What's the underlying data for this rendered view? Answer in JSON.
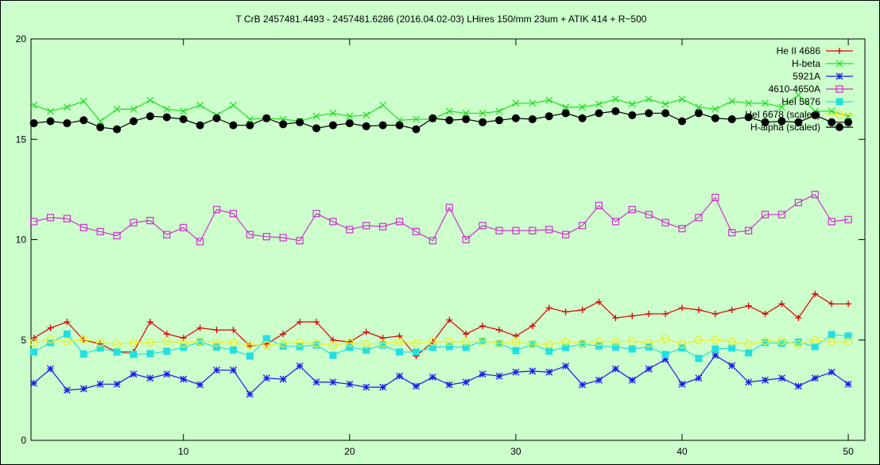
{
  "chart_data": {
    "type": "line",
    "title": "T CrB 2457481.4493 - 2457481.6286 (2016.04.02-03) LHires 150/mm 23um + ATIK 414 + R~500",
    "xlabel": "",
    "ylabel": "",
    "xlim": [
      0.83,
      51
    ],
    "ylim": [
      0,
      20
    ],
    "xticks": [
      10,
      20,
      30,
      40,
      50
    ],
    "yticks": [
      0,
      5,
      10,
      15,
      20
    ],
    "grid": false,
    "legend": "top-right",
    "background": "#ccffcc",
    "x": [
      1,
      2,
      3,
      4,
      5,
      6,
      7,
      8,
      9,
      10,
      11,
      12,
      13,
      14,
      15,
      16,
      17,
      18,
      19,
      20,
      21,
      22,
      23,
      24,
      25,
      26,
      27,
      28,
      29,
      30,
      31,
      32,
      33,
      34,
      35,
      36,
      37,
      38,
      39,
      40,
      41,
      42,
      43,
      44,
      45,
      46,
      47,
      48,
      49,
      50
    ],
    "series": [
      {
        "name": "He II 4686",
        "color": "#dd0000",
        "marker": "plus",
        "values": [
          5.1,
          5.6,
          5.9,
          5.0,
          4.8,
          4.4,
          4.4,
          5.9,
          5.3,
          5.1,
          5.6,
          5.5,
          5.5,
          4.7,
          4.8,
          5.3,
          5.9,
          5.9,
          5.0,
          4.9,
          5.4,
          5.1,
          5.2,
          4.2,
          4.9,
          6.0,
          5.3,
          5.7,
          5.5,
          5.2,
          5.7,
          6.6,
          6.4,
          6.5,
          6.9,
          6.1,
          6.2,
          6.3,
          6.3,
          6.6,
          6.5,
          6.3,
          6.5,
          6.7,
          6.3,
          6.8,
          6.1,
          7.3,
          6.8,
          6.8
        ]
      },
      {
        "name": "H-beta",
        "color": "#22dd22",
        "marker": "cross",
        "values": [
          16.7,
          16.4,
          16.6,
          16.9,
          15.9,
          16.5,
          16.5,
          16.95,
          16.5,
          16.4,
          16.7,
          16.2,
          16.7,
          16.0,
          16.05,
          16.0,
          15.9,
          16.15,
          16.3,
          16.15,
          16.2,
          16.7,
          15.95,
          16.0,
          16.0,
          16.4,
          16.3,
          16.3,
          16.4,
          16.8,
          16.8,
          16.95,
          16.6,
          16.6,
          16.75,
          17.0,
          16.75,
          17.0,
          16.75,
          17.0,
          16.6,
          16.5,
          16.9,
          16.8,
          16.8,
          16.6,
          17.2,
          16.4,
          16.4,
          16.15
        ]
      },
      {
        "name": "5921A",
        "color": "#1a1aee",
        "marker": "star",
        "values": [
          2.85,
          3.56,
          2.5,
          2.57,
          2.8,
          2.8,
          3.3,
          3.1,
          3.3,
          3.05,
          2.77,
          3.5,
          3.5,
          2.3,
          3.1,
          3.05,
          3.7,
          2.9,
          2.9,
          2.8,
          2.65,
          2.65,
          3.2,
          2.7,
          3.15,
          2.77,
          2.9,
          3.3,
          3.2,
          3.4,
          3.45,
          3.4,
          3.7,
          2.77,
          3.0,
          3.56,
          3.0,
          3.56,
          4.04,
          2.8,
          3.1,
          4.24,
          3.72,
          2.9,
          3.0,
          3.1,
          2.7,
          3.1,
          3.4,
          2.8
        ]
      },
      {
        "name": "4610-4650A",
        "color": "#cc33cc",
        "marker": "open-square",
        "values": [
          10.9,
          11.1,
          11.05,
          10.6,
          10.4,
          10.2,
          10.85,
          10.95,
          10.25,
          10.6,
          9.9,
          11.5,
          11.3,
          10.25,
          10.15,
          10.1,
          9.95,
          11.3,
          10.9,
          10.5,
          10.7,
          10.65,
          10.9,
          10.4,
          9.95,
          11.6,
          10.0,
          10.7,
          10.45,
          10.45,
          10.45,
          10.5,
          10.25,
          10.7,
          11.7,
          10.9,
          11.5,
          11.25,
          10.85,
          10.55,
          11.1,
          12.1,
          10.35,
          10.45,
          11.25,
          11.25,
          11.85,
          12.25,
          10.9,
          11.0
        ]
      },
      {
        "name": "HeI 5876",
        "color": "#22e0e0",
        "marker": "filled-square",
        "values": [
          4.4,
          4.87,
          5.3,
          4.3,
          4.6,
          4.4,
          4.28,
          4.32,
          4.44,
          4.63,
          4.9,
          4.65,
          4.5,
          4.2,
          5.07,
          4.7,
          4.67,
          4.75,
          4.24,
          4.63,
          4.5,
          4.75,
          4.4,
          4.4,
          4.63,
          4.67,
          4.63,
          4.95,
          4.83,
          4.47,
          4.8,
          4.44,
          4.63,
          4.8,
          4.7,
          4.65,
          4.55,
          4.65,
          4.28,
          4.6,
          4.08,
          4.55,
          4.6,
          4.36,
          4.87,
          4.83,
          4.9,
          4.67,
          5.27,
          5.2
        ]
      },
      {
        "name": "HeI 6678 (scaled)",
        "color": "#eeee22",
        "marker": "open-circle",
        "values": [
          4.87,
          5.03,
          4.91,
          5.03,
          4.87,
          4.79,
          4.87,
          4.87,
          4.95,
          4.83,
          4.95,
          4.87,
          4.87,
          4.75,
          4.75,
          4.83,
          4.87,
          4.83,
          4.71,
          4.87,
          4.79,
          4.83,
          4.91,
          4.83,
          4.91,
          4.91,
          4.91,
          4.95,
          4.83,
          4.91,
          4.79,
          4.79,
          4.91,
          4.83,
          4.91,
          4.91,
          4.95,
          4.83,
          5.07,
          4.79,
          4.99,
          4.99,
          4.91,
          4.79,
          4.95,
          4.95,
          4.79,
          4.99,
          4.91,
          4.91
        ]
      },
      {
        "name": "H-alpha (scaled)",
        "color": "#000000",
        "marker": "filled-circle",
        "values": [
          15.8,
          15.9,
          15.8,
          15.95,
          15.6,
          15.5,
          15.9,
          16.15,
          16.1,
          16.0,
          15.7,
          16.05,
          15.7,
          15.7,
          16.05,
          15.75,
          15.85,
          15.55,
          15.7,
          15.8,
          15.65,
          15.7,
          15.7,
          15.5,
          16.05,
          15.95,
          16.0,
          15.85,
          15.95,
          16.05,
          16.0,
          16.15,
          16.3,
          16.05,
          16.3,
          16.4,
          16.2,
          16.3,
          16.3,
          15.9,
          16.3,
          16.05,
          16.0,
          16.1,
          15.85,
          15.9,
          15.85,
          16.2,
          15.85,
          15.85
        ]
      }
    ]
  }
}
